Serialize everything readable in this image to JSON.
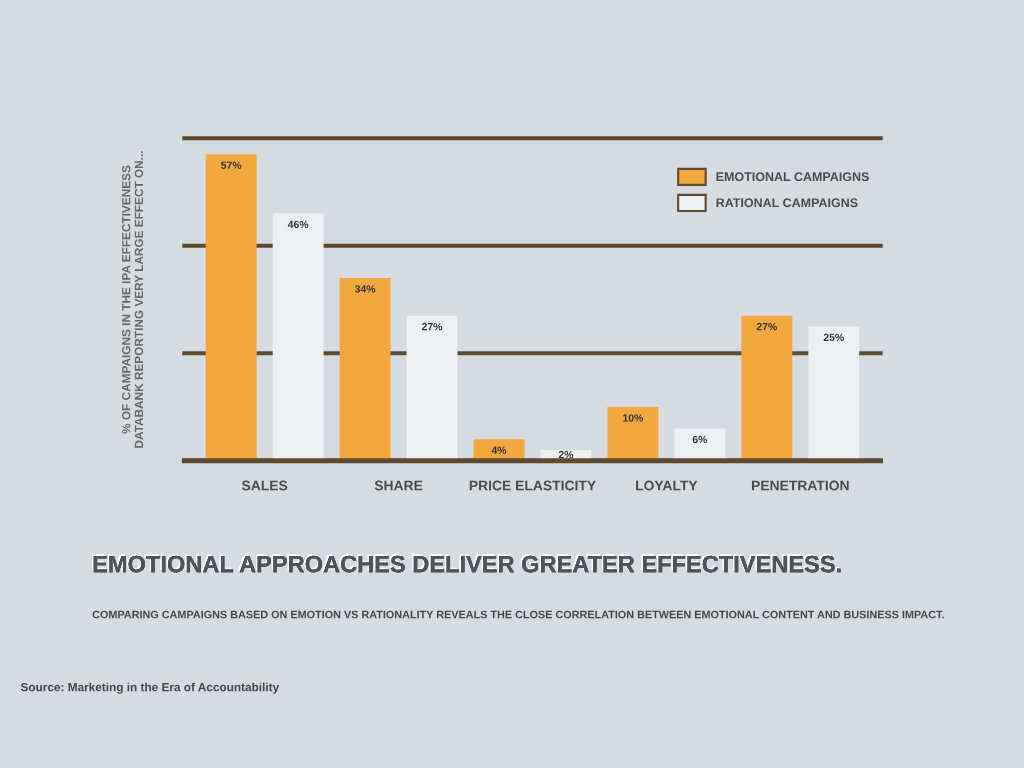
{
  "chart_data": {
    "type": "bar",
    "title": "EMOTIONAL APPROACHES DELIVER GREATER EFFECTIVENESS.",
    "subtitle": "COMPARING CAMPAIGNS BASED ON EMOTION VS RATIONALITY REVEALS THE CLOSE CORRELATION BETWEEN EMOTIONAL CONTENT AND BUSINESS IMPACT.",
    "ylabel": "% OF CAMPAIGNS IN THE IPA EFFECTIVENESS\nDATABANK REPORTING VERY LARGE EFFECT ON...",
    "annotations": [
      "Source: Marketing in the Era of Accountability"
    ],
    "categories": [
      "SALES",
      "SHARE",
      "PRICE ELASTICITY",
      "LOYALTY",
      "PENETRATION"
    ],
    "series": [
      {
        "name": "EMOTIONAL CAMPAIGNS",
        "color": "#f2a83e",
        "values": [
          57,
          34,
          4,
          10,
          27
        ],
        "value_labels": [
          "57%",
          "34%",
          "4%",
          "10%",
          "27%"
        ]
      },
      {
        "name": "RATIONAL CAMPAIGNS",
        "color": "#eef1f4",
        "values": [
          46,
          27,
          2,
          6,
          25
        ],
        "value_labels": [
          "46%",
          "27%",
          "2%",
          "6%",
          "25%"
        ]
      }
    ],
    "ylim": [
      0,
      60
    ],
    "yticks": [
      {
        "value": 0,
        "label": null
      },
      {
        "value": 20,
        "label": null
      },
      {
        "value": 40,
        "label": null
      },
      {
        "value": 60,
        "label": null
      }
    ],
    "tick_labels": "x",
    "grid": "y",
    "legend": "top right"
  }
}
